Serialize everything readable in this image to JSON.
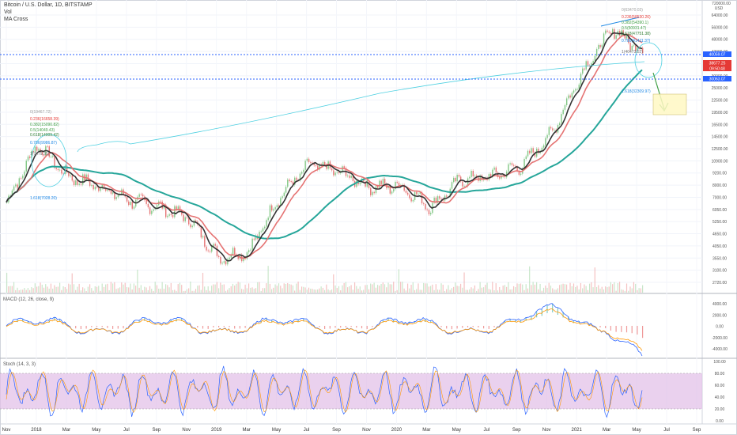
{
  "header": {
    "title": "Bitcoin / U.S. Dollar, 1D, BITSTAMP",
    "vol": "Vol",
    "ma": "MA Cross"
  },
  "price_pane": {
    "currency": "USD",
    "ticks": [
      "64000.00",
      "56000.00",
      "48000.00",
      "42000.00",
      "36000.00",
      "30000.00",
      "25000.00",
      "22500.00",
      "19500.00",
      "16500.00",
      "14500.00",
      "12500.00",
      "10900.00",
      "9200.00",
      "8000.00",
      "7000.00",
      "6050.00",
      "5250.00",
      "4650.00",
      "4050.00",
      "3550.00",
      "3100.00",
      "2720.00"
    ],
    "top_tick": "720000.00",
    "badges": [
      {
        "text": "40059.07",
        "color": "#2962ff"
      },
      {
        "text": "38677.25",
        "color": "#e53935"
      },
      {
        "text": "09:50:48",
        "color": "#e53935"
      },
      {
        "text": "30063.07",
        "color": "#2962ff"
      }
    ],
    "fib_left": [
      "0(19467.72)",
      "0.236(16658.39)",
      "0.382(15090.82)",
      "0.5(14049.43)",
      "0.618(14009.42)",
      "0.786(9986.87)",
      "1(7479.35)",
      "1.618(7028.20)"
    ],
    "fib_right": [
      "0(63470.03)",
      "0.236(58530.26)",
      "0.382(54390.1)",
      "0.5(50931.47)",
      "0.618(47751.38)",
      "0.786(41411.37)",
      "1(40473.52)",
      "1.618(32309.97)"
    ]
  },
  "macd_pane": {
    "title": "MACD (12, 26, close, 9)",
    "ticks": [
      "4000.00",
      "2000.00",
      "0.00",
      "-2000.00",
      "-4000.00"
    ]
  },
  "stoch_pane": {
    "title": "Stoch (14, 3, 3)",
    "ticks": [
      "100.00",
      "80.00",
      "60.00",
      "40.00",
      "20.00",
      "0.00"
    ]
  },
  "x_axis": [
    "Nov",
    "2018",
    "Mar",
    "May",
    "Jul",
    "Sep",
    "Nov",
    "2019",
    "Mar",
    "May",
    "Jul",
    "Sep",
    "Nov",
    "2020",
    "Mar",
    "May",
    "Jul",
    "Sep",
    "Nov",
    "2021",
    "Mar",
    "May",
    "Jul",
    "Sep"
  ],
  "chart_data": {
    "type": "line",
    "x": [
      "2017-11",
      "2018-01",
      "2018-03",
      "2018-05",
      "2018-07",
      "2018-09",
      "2018-11",
      "2019-01",
      "2019-03",
      "2019-05",
      "2019-07",
      "2019-09",
      "2019-11",
      "2020-01",
      "2020-03",
      "2020-05",
      "2020-07",
      "2020-09",
      "2020-11",
      "2021-01",
      "2021-03",
      "2021-05"
    ],
    "series": [
      {
        "values": [
          7000,
          14000,
          9500,
          8500,
          7200,
          6600,
          5800,
          3600,
          3900,
          7500,
          11000,
          10000,
          8400,
          8500,
          6600,
          9200,
          9500,
          10800,
          16000,
          33000,
          55000,
          42000
        ]
      }
    ],
    "ylim": [
      2500,
      72000
    ],
    "log_scale": true
  }
}
